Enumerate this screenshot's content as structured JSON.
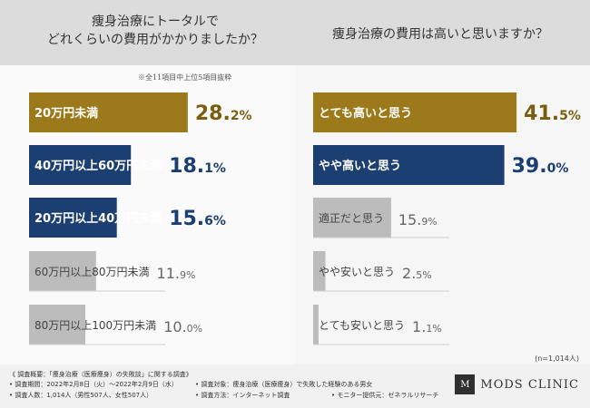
{
  "note": "※全11項目中上位5項目抜粋",
  "sample_size": "(n=1,014人)",
  "colors": {
    "gold": "#9c7a1b",
    "navy": "#1c3f72",
    "gray": "#bcbcbc"
  },
  "chart_data": [
    {
      "type": "bar",
      "title": [
        "痩身治療にトータルで",
        "どれくらいの費用がかかりましたか？"
      ],
      "categories": [
        "20万円未満",
        "40万円以上60万円未満",
        "20万円以上40万円未満",
        "60万円以上80万円未満",
        "80万円以上100万円未満"
      ],
      "values": [
        28.2,
        18.1,
        15.6,
        11.9,
        10.0
      ],
      "value_labels": [
        [
          "28.",
          "2%"
        ],
        [
          "18.",
          "1%"
        ],
        [
          "15.",
          "6%"
        ],
        [
          "11.",
          "9%"
        ],
        [
          "10.",
          "0%"
        ]
      ],
      "colors": [
        "gold",
        "navy",
        "navy",
        "gray",
        "gray"
      ]
    },
    {
      "type": "bar",
      "title": [
        "痩身治療の費用は高いと思いますか？"
      ],
      "categories": [
        "とても高いと思う",
        "やや高いと思う",
        "適正だと思う",
        "やや安いと思う",
        "とても安いと思う"
      ],
      "values": [
        41.5,
        39.0,
        15.9,
        2.5,
        1.1
      ],
      "value_labels": [
        [
          "41.",
          "5%"
        ],
        [
          "39.",
          "0%"
        ],
        [
          "15.",
          "9%"
        ],
        [
          "2.",
          "5%"
        ],
        [
          "1.",
          "1%"
        ]
      ],
      "colors": [
        "gold",
        "navy",
        "gray",
        "gray",
        "gray"
      ]
    }
  ],
  "footer": {
    "title": "《 調査概要：「痩身治療（医療痩身）の失敗談」に関する調査》",
    "items": [
      "• 調査期間：2022年2月8日（火）〜2022年2月9日（水）",
      "• 調査対象：痩身治療（医療痩身）で失敗した経験のある男女",
      "• 調査人数：1,014人（男性507人、女性507人）",
      "• 調査方法：インターネット調査",
      "• モニター提供元：ゼネラルリサーチ"
    ]
  },
  "logo": {
    "mark": "M",
    "text": "MODS CLINIC"
  }
}
